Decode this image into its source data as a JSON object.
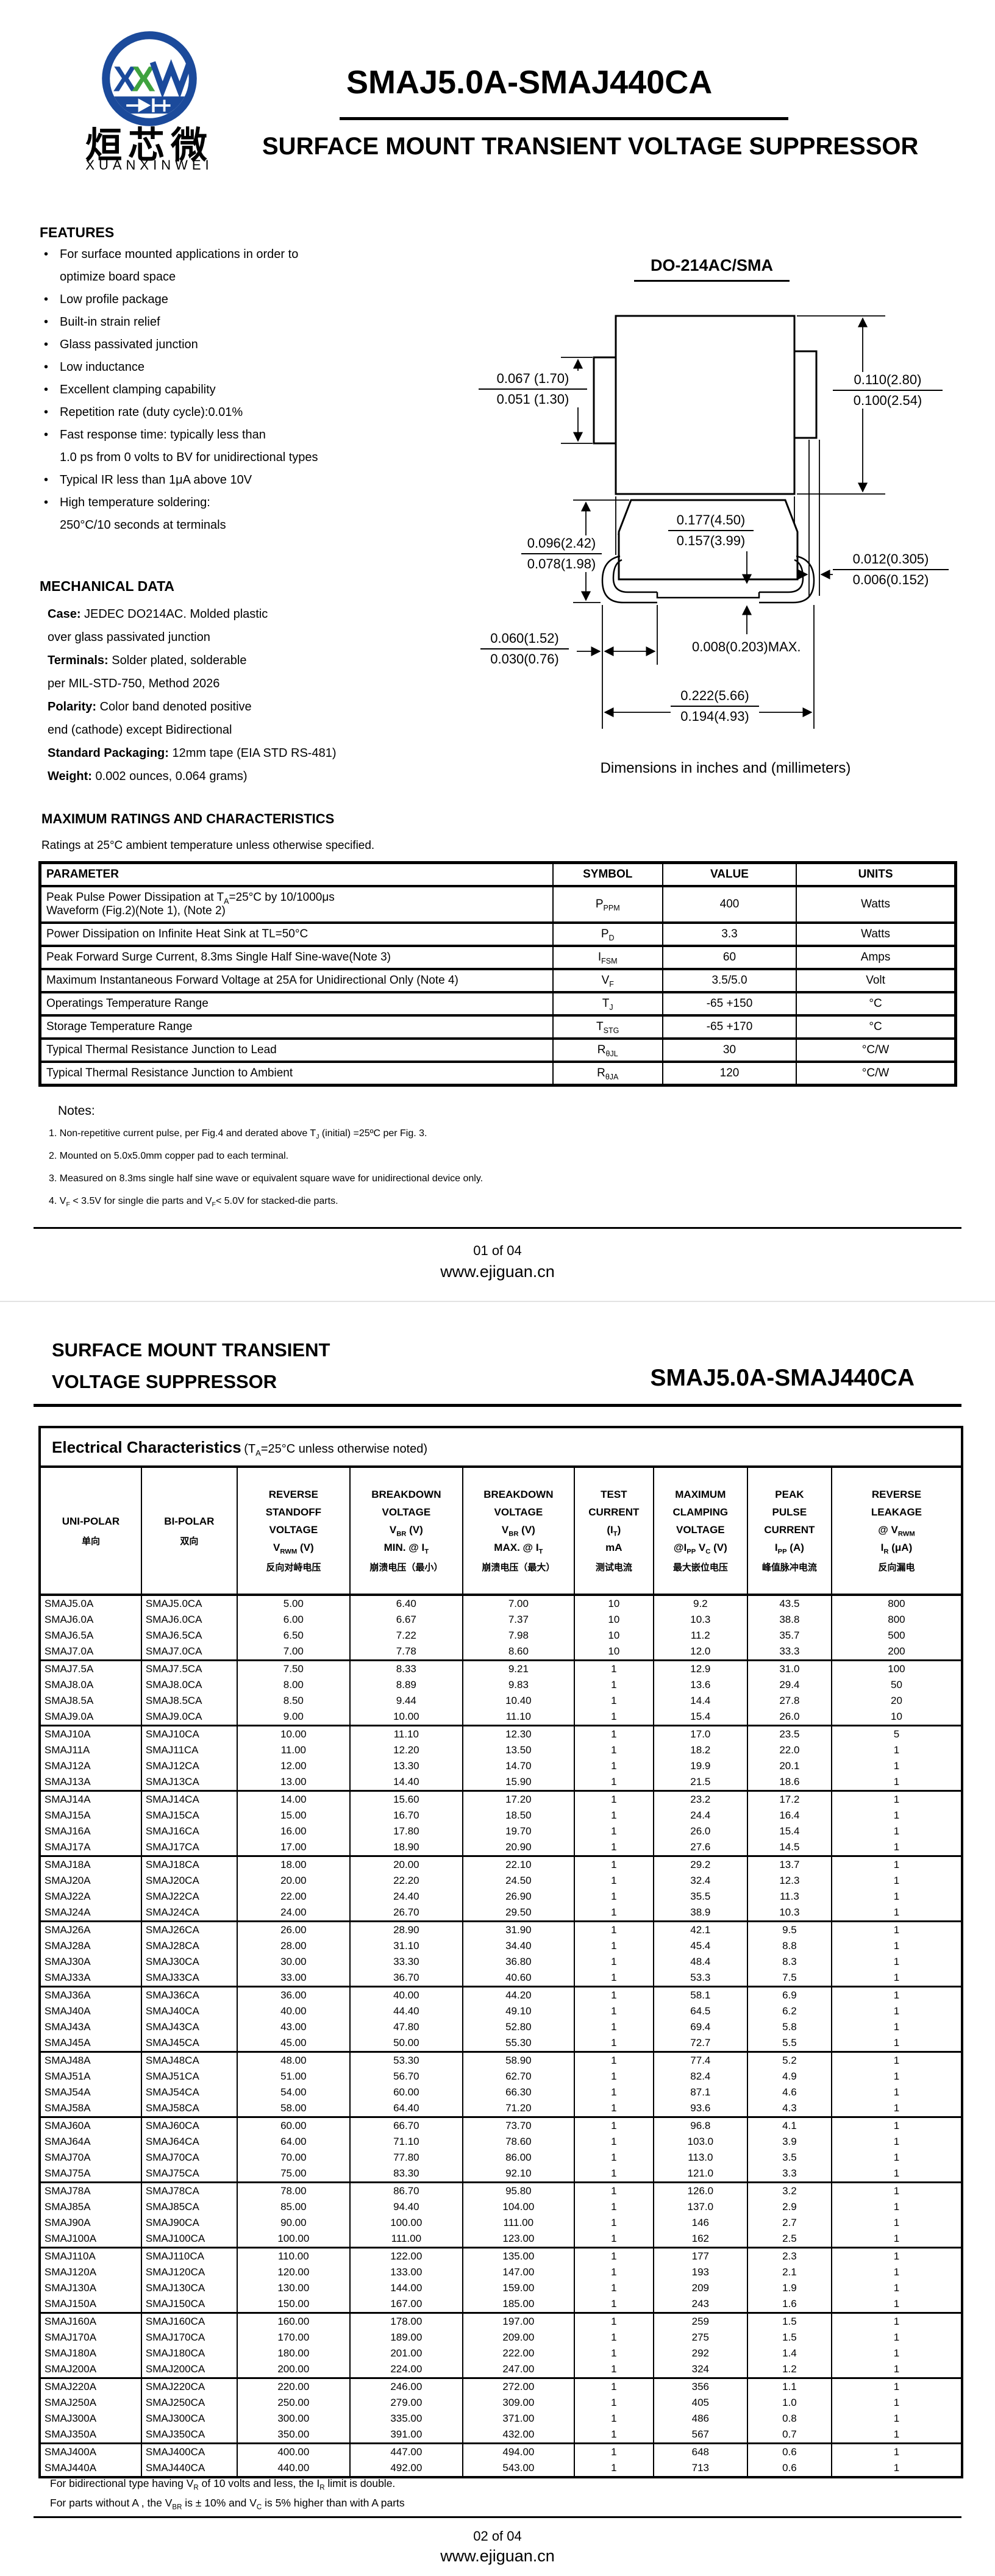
{
  "page1": {
    "brand": {
      "cn_name": "烜芯微",
      "en_name": "XUANXINWEI"
    },
    "title": "SMAJ5.0A-SMAJ440CA",
    "subtitle": "SURFACE MOUNT TRANSIENT VOLTAGE SUPPRESSOR",
    "features": {
      "heading": "FEATURES",
      "lines": [
        {
          "bullet": true,
          "text": "For surface mounted applications in order to"
        },
        {
          "bullet": false,
          "text": "optimize board space"
        },
        {
          "bullet": true,
          "text": "Low profile package"
        },
        {
          "bullet": true,
          "text": "Built-in strain relief"
        },
        {
          "bullet": true,
          "text": "Glass passivated junction"
        },
        {
          "bullet": true,
          "text": "Low inductance"
        },
        {
          "bullet": true,
          "text": "Excellent clamping capability"
        },
        {
          "bullet": true,
          "text": "Repetition rate (duty cycle):0.01%"
        },
        {
          "bullet": true,
          "text": "Fast response time: typically less than"
        },
        {
          "bullet": false,
          "text": "1.0 ps from 0 volts to BV for unidirectional types"
        },
        {
          "bullet": true,
          "text": "Typical IR less than 1μA above 10V"
        },
        {
          "bullet": true,
          "text": "High temperature soldering:"
        },
        {
          "bullet": false,
          "text": "250°C/10 seconds at terminals"
        }
      ]
    },
    "mechanical": {
      "heading": "MECHANICAL DATA",
      "lines": [
        {
          "bold": "Case:",
          "text": " JEDEC DO214AC. Molded plastic"
        },
        {
          "bold": "",
          "text": "over glass passivated junction"
        },
        {
          "bold": "Terminals:",
          "text": " Solder plated, solderable"
        },
        {
          "bold": "",
          "text": "per MIL-STD-750, Method 2026"
        },
        {
          "bold": "Polarity:",
          "text": " Color band denoted positive"
        },
        {
          "bold": "",
          "text": "end (cathode) except Bidirectional"
        },
        {
          "bold": "Standard Packaging:",
          "text": " 12mm tape (EIA STD RS-481)"
        },
        {
          "bold": "Weight:",
          "text": " 0.002 ounces, 0.064 grams)"
        }
      ]
    },
    "drawing": {
      "title": "DO-214AC/SMA",
      "caption": "Dimensions in inches and (millimeters)",
      "dims": {
        "lead_width": {
          "a": "0.067 (1.70)",
          "b": "0.051 (1.30)"
        },
        "body_height": {
          "a": "0.110(2.80)",
          "b": "0.100(2.54)"
        },
        "body_width": {
          "a": "0.177(4.50)",
          "b": "0.157(3.99)"
        },
        "lead_thickness": {
          "a": "0.012(0.305)",
          "b": "0.006(0.152)"
        },
        "profile_height": {
          "a": "0.096(2.42)",
          "b": "0.078(1.98)"
        },
        "foot_length": {
          "a": "0.060(1.52)",
          "b": "0.030(0.76)"
        },
        "standoff": "0.008(0.203)MAX.",
        "overall_width": {
          "a": "0.222(5.66)",
          "b": "0.194(4.93)"
        }
      }
    },
    "ratings": {
      "heading": "MAXIMUM RATINGS AND CHARACTERISTICS",
      "condition": "Ratings at 25°C ambient temperature unless otherwise specified.",
      "columns": [
        "PARAMETER",
        "SYMBOL",
        "VALUE",
        "UNITS"
      ],
      "rows": [
        {
          "param": "Peak Pulse Power Dissipation at T~A~=25°C by 10/1000μs\nWaveform (Fig.2)(Note 1), (Note 2)",
          "sym": "P~PPM~",
          "val": "400",
          "units": "Watts"
        },
        {
          "param": "Power Dissipation on Infinite Heat Sink at TL=50°C",
          "sym": "P~D~",
          "val": "3.3",
          "units": "Watts"
        },
        {
          "param": "Peak Forward Surge Current, 8.3ms Single Half Sine-wave(Note 3)",
          "sym": "I~FSM~",
          "val": "60",
          "units": "Amps"
        },
        {
          "param": "Maximum Instantaneous Forward Voltage at 25A for Unidirectional Only (Note 4)",
          "sym": "V~F~",
          "val": "3.5/5.0",
          "units": "Volt"
        },
        {
          "param": "Operatings Temperature Range",
          "sym": "T~J~",
          "val": "-65 +150",
          "units": "°C"
        },
        {
          "param": "Storage Temperature Range",
          "sym": "T~STG~",
          "val": "-65 +170",
          "units": "°C"
        },
        {
          "param": "Typical Thermal Resistance Junction to Lead",
          "sym": "R~θJL~",
          "val": "30",
          "units": "°C/W"
        },
        {
          "param": "Typical Thermal Resistance Junction to Ambient",
          "sym": "R~θJA~",
          "val": "120",
          "units": "°C/W"
        }
      ]
    },
    "notes": {
      "heading": "Notes:",
      "items": [
        "1. Non-repetitive current pulse, per Fig.4 and derated above T~J~ (initial) =25ºC per Fig. 3.",
        "2. Mounted on 5.0x5.0mm copper pad to each terminal.",
        "3. Measured on 8.3ms single half sine wave or equivalent square wave for unidirectional device only.",
        "4. V~F~ < 3.5V for single die parts and V~F~< 5.0V for stacked-die parts."
      ]
    },
    "footer": {
      "page": "01 of 04",
      "site": "www.ejiguan.cn"
    }
  },
  "page2": {
    "header_line1": "SURFACE MOUNT TRANSIENT",
    "header_line2": "VOLTAGE SUPPRESSOR",
    "title": "SMAJ5.0A-SMAJ440CA",
    "electrical": {
      "title": "Electrical Characteristics",
      "title_note": "(T~A~=25°C unless otherwise noted)",
      "columns": [
        {
          "lines": [
            "UNI-POLAR"
          ],
          "cn": "单向"
        },
        {
          "lines": [
            "BI-POLAR"
          ],
          "cn": "双向"
        },
        {
          "lines": [
            "REVERSE",
            "STANDOFF",
            "VOLTAGE",
            "V~RWM~ (V)"
          ],
          "cn": "反向对峙电压"
        },
        {
          "lines": [
            "BREAKDOWN",
            "VOLTAGE",
            "V~BR~ (V)",
            "MIN. @ I~T~"
          ],
          "cn": "崩溃电压（最小）"
        },
        {
          "lines": [
            "BREAKDOWN",
            "VOLTAGE",
            "V~BR~ (V)",
            "MAX. @ I~T~"
          ],
          "cn": "崩溃电压（最大）"
        },
        {
          "lines": [
            "TEST",
            "CURRENT",
            "(I~T~)",
            "mA"
          ],
          "cn": "测试电流"
        },
        {
          "lines": [
            "MAXIMUM",
            "CLAMPING",
            "VOLTAGE",
            "@I~PP~ V~C~ (V)"
          ],
          "cn": "最大嵌位电压"
        },
        {
          "lines": [
            "PEAK",
            "PULSE",
            "CURRENT",
            "I~PP~ (A)"
          ],
          "cn": "峰值脉冲电流"
        },
        {
          "lines": [
            "REVERSE",
            "LEAKAGE",
            "@ V~RWM~",
            "I~R~ (μA)"
          ],
          "cn": "反向漏电"
        }
      ],
      "rows": [
        [
          "SMAJ5.0A",
          "SMAJ5.0CA",
          "5.00",
          "6.40",
          "7.00",
          "10",
          "9.2",
          "43.5",
          "800"
        ],
        [
          "SMAJ6.0A",
          "SMAJ6.0CA",
          "6.00",
          "6.67",
          "7.37",
          "10",
          "10.3",
          "38.8",
          "800"
        ],
        [
          "SMAJ6.5A",
          "SMAJ6.5CA",
          "6.50",
          "7.22",
          "7.98",
          "10",
          "11.2",
          "35.7",
          "500"
        ],
        [
          "SMAJ7.0A",
          "SMAJ7.0CA",
          "7.00",
          "7.78",
          "8.60",
          "10",
          "12.0",
          "33.3",
          "200"
        ],
        [
          "SMAJ7.5A",
          "SMAJ7.5CA",
          "7.50",
          "8.33",
          "9.21",
          "1",
          "12.9",
          "31.0",
          "100"
        ],
        [
          "SMAJ8.0A",
          "SMAJ8.0CA",
          "8.00",
          "8.89",
          "9.83",
          "1",
          "13.6",
          "29.4",
          "50"
        ],
        [
          "SMAJ8.5A",
          "SMAJ8.5CA",
          "8.50",
          "9.44",
          "10.40",
          "1",
          "14.4",
          "27.8",
          "20"
        ],
        [
          "SMAJ9.0A",
          "SMAJ9.0CA",
          "9.00",
          "10.00",
          "11.10",
          "1",
          "15.4",
          "26.0",
          "10"
        ],
        [
          "SMAJ10A",
          "SMAJ10CA",
          "10.00",
          "11.10",
          "12.30",
          "1",
          "17.0",
          "23.5",
          "5"
        ],
        [
          "SMAJ11A",
          "SMAJ11CA",
          "11.00",
          "12.20",
          "13.50",
          "1",
          "18.2",
          "22.0",
          "1"
        ],
        [
          "SMAJ12A",
          "SMAJ12CA",
          "12.00",
          "13.30",
          "14.70",
          "1",
          "19.9",
          "20.1",
          "1"
        ],
        [
          "SMAJ13A",
          "SMAJ13CA",
          "13.00",
          "14.40",
          "15.90",
          "1",
          "21.5",
          "18.6",
          "1"
        ],
        [
          "SMAJ14A",
          "SMAJ14CA",
          "14.00",
          "15.60",
          "17.20",
          "1",
          "23.2",
          "17.2",
          "1"
        ],
        [
          "SMAJ15A",
          "SMAJ15CA",
          "15.00",
          "16.70",
          "18.50",
          "1",
          "24.4",
          "16.4",
          "1"
        ],
        [
          "SMAJ16A",
          "SMAJ16CA",
          "16.00",
          "17.80",
          "19.70",
          "1",
          "26.0",
          "15.4",
          "1"
        ],
        [
          "SMAJ17A",
          "SMAJ17CA",
          "17.00",
          "18.90",
          "20.90",
          "1",
          "27.6",
          "14.5",
          "1"
        ],
        [
          "SMAJ18A",
          "SMAJ18CA",
          "18.00",
          "20.00",
          "22.10",
          "1",
          "29.2",
          "13.7",
          "1"
        ],
        [
          "SMAJ20A",
          "SMAJ20CA",
          "20.00",
          "22.20",
          "24.50",
          "1",
          "32.4",
          "12.3",
          "1"
        ],
        [
          "SMAJ22A",
          "SMAJ22CA",
          "22.00",
          "24.40",
          "26.90",
          "1",
          "35.5",
          "11.3",
          "1"
        ],
        [
          "SMAJ24A",
          "SMAJ24CA",
          "24.00",
          "26.70",
          "29.50",
          "1",
          "38.9",
          "10.3",
          "1"
        ],
        [
          "SMAJ26A",
          "SMAJ26CA",
          "26.00",
          "28.90",
          "31.90",
          "1",
          "42.1",
          "9.5",
          "1"
        ],
        [
          "SMAJ28A",
          "SMAJ28CA",
          "28.00",
          "31.10",
          "34.40",
          "1",
          "45.4",
          "8.8",
          "1"
        ],
        [
          "SMAJ30A",
          "SMAJ30CA",
          "30.00",
          "33.30",
          "36.80",
          "1",
          "48.4",
          "8.3",
          "1"
        ],
        [
          "SMAJ33A",
          "SMAJ33CA",
          "33.00",
          "36.70",
          "40.60",
          "1",
          "53.3",
          "7.5",
          "1"
        ],
        [
          "SMAJ36A",
          "SMAJ36CA",
          "36.00",
          "40.00",
          "44.20",
          "1",
          "58.1",
          "6.9",
          "1"
        ],
        [
          "SMAJ40A",
          "SMAJ40CA",
          "40.00",
          "44.40",
          "49.10",
          "1",
          "64.5",
          "6.2",
          "1"
        ],
        [
          "SMAJ43A",
          "SMAJ43CA",
          "43.00",
          "47.80",
          "52.80",
          "1",
          "69.4",
          "5.8",
          "1"
        ],
        [
          "SMAJ45A",
          "SMAJ45CA",
          "45.00",
          "50.00",
          "55.30",
          "1",
          "72.7",
          "5.5",
          "1"
        ],
        [
          "SMAJ48A",
          "SMAJ48CA",
          "48.00",
          "53.30",
          "58.90",
          "1",
          "77.4",
          "5.2",
          "1"
        ],
        [
          "SMAJ51A",
          "SMAJ51CA",
          "51.00",
          "56.70",
          "62.70",
          "1",
          "82.4",
          "4.9",
          "1"
        ],
        [
          "SMAJ54A",
          "SMAJ54CA",
          "54.00",
          "60.00",
          "66.30",
          "1",
          "87.1",
          "4.6",
          "1"
        ],
        [
          "SMAJ58A",
          "SMAJ58CA",
          "58.00",
          "64.40",
          "71.20",
          "1",
          "93.6",
          "4.3",
          "1"
        ],
        [
          "SMAJ60A",
          "SMAJ60CA",
          "60.00",
          "66.70",
          "73.70",
          "1",
          "96.8",
          "4.1",
          "1"
        ],
        [
          "SMAJ64A",
          "SMAJ64CA",
          "64.00",
          "71.10",
          "78.60",
          "1",
          "103.0",
          "3.9",
          "1"
        ],
        [
          "SMAJ70A",
          "SMAJ70CA",
          "70.00",
          "77.80",
          "86.00",
          "1",
          "113.0",
          "3.5",
          "1"
        ],
        [
          "SMAJ75A",
          "SMAJ75CA",
          "75.00",
          "83.30",
          "92.10",
          "1",
          "121.0",
          "3.3",
          "1"
        ],
        [
          "SMAJ78A",
          "SMAJ78CA",
          "78.00",
          "86.70",
          "95.80",
          "1",
          "126.0",
          "3.2",
          "1"
        ],
        [
          "SMAJ85A",
          "SMAJ85CA",
          "85.00",
          "94.40",
          "104.00",
          "1",
          "137.0",
          "2.9",
          "1"
        ],
        [
          "SMAJ90A",
          "SMAJ90CA",
          "90.00",
          "100.00",
          "111.00",
          "1",
          "146",
          "2.7",
          "1"
        ],
        [
          "SMAJ100A",
          "SMAJ100CA",
          "100.00",
          "111.00",
          "123.00",
          "1",
          "162",
          "2.5",
          "1"
        ],
        [
          "SMAJ110A",
          "SMAJ110CA",
          "110.00",
          "122.00",
          "135.00",
          "1",
          "177",
          "2.3",
          "1"
        ],
        [
          "SMAJ120A",
          "SMAJ120CA",
          "120.00",
          "133.00",
          "147.00",
          "1",
          "193",
          "2.1",
          "1"
        ],
        [
          "SMAJ130A",
          "SMAJ130CA",
          "130.00",
          "144.00",
          "159.00",
          "1",
          "209",
          "1.9",
          "1"
        ],
        [
          "SMAJ150A",
          "SMAJ150CA",
          "150.00",
          "167.00",
          "185.00",
          "1",
          "243",
          "1.6",
          "1"
        ],
        [
          "SMAJ160A",
          "SMAJ160CA",
          "160.00",
          "178.00",
          "197.00",
          "1",
          "259",
          "1.5",
          "1"
        ],
        [
          "SMAJ170A",
          "SMAJ170CA",
          "170.00",
          "189.00",
          "209.00",
          "1",
          "275",
          "1.5",
          "1"
        ],
        [
          "SMAJ180A",
          "SMAJ180CA",
          "180.00",
          "201.00",
          "222.00",
          "1",
          "292",
          "1.4",
          "1"
        ],
        [
          "SMAJ200A",
          "SMAJ200CA",
          "200.00",
          "224.00",
          "247.00",
          "1",
          "324",
          "1.2",
          "1"
        ],
        [
          "SMAJ220A",
          "SMAJ220CA",
          "220.00",
          "246.00",
          "272.00",
          "1",
          "356",
          "1.1",
          "1"
        ],
        [
          "SMAJ250A",
          "SMAJ250CA",
          "250.00",
          "279.00",
          "309.00",
          "1",
          "405",
          "1.0",
          "1"
        ],
        [
          "SMAJ300A",
          "SMAJ300CA",
          "300.00",
          "335.00",
          "371.00",
          "1",
          "486",
          "0.8",
          "1"
        ],
        [
          "SMAJ350A",
          "SMAJ350CA",
          "350.00",
          "391.00",
          "432.00",
          "1",
          "567",
          "0.7",
          "1"
        ],
        [
          "SMAJ400A",
          "SMAJ400CA",
          "400.00",
          "447.00",
          "494.00",
          "1",
          "648",
          "0.6",
          "1"
        ],
        [
          "SMAJ440A",
          "SMAJ440CA",
          "440.00",
          "492.00",
          "543.00",
          "1",
          "713",
          "0.6",
          "1"
        ]
      ]
    },
    "footnotes": [
      "For bidirectional type having V~R~ of 10 volts and less, the I~R~ limit is double.",
      "For parts without A , the V~BR~ is ± 10% and V~C~ is 5% higher than with A parts"
    ],
    "footer": {
      "page": "02 of 04",
      "site": "www.ejiguan.cn"
    }
  }
}
